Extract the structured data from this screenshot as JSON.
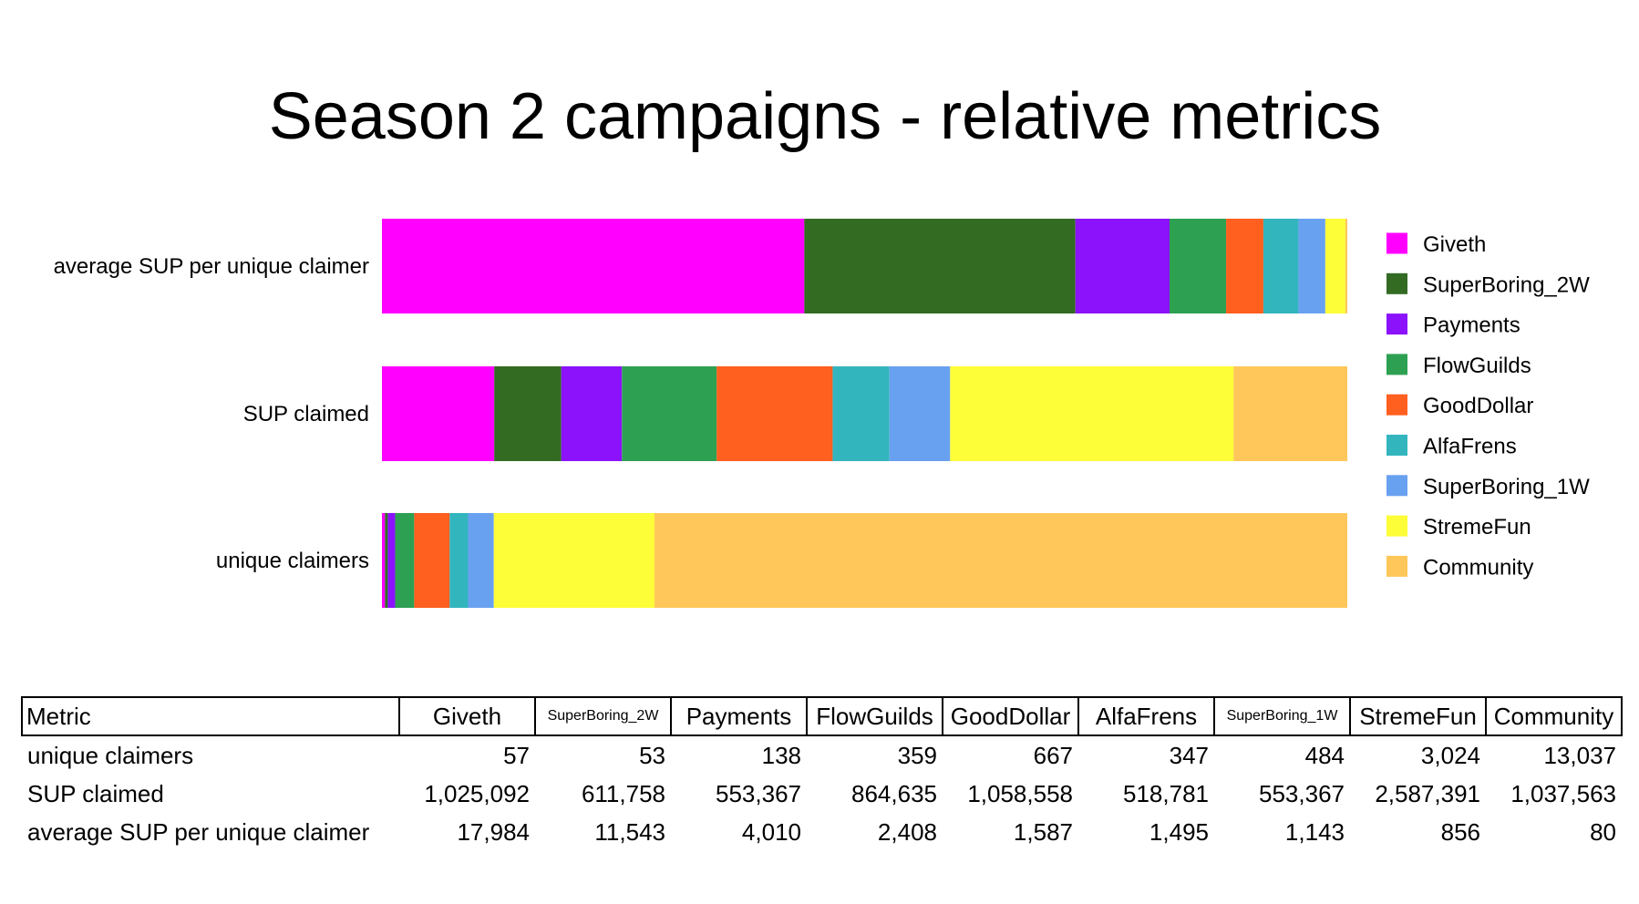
{
  "chart_data": {
    "type": "bar",
    "orientation": "horizontal",
    "stacked": "normalized",
    "title": "Season 2 campaigns - relative metrics",
    "categories": [
      "average SUP per unique claimer",
      "SUP claimed",
      "unique claimers"
    ],
    "series": [
      {
        "name": "Giveth",
        "color": "#ff00ff",
        "values": [
          17984,
          1025092,
          57
        ]
      },
      {
        "name": "SuperBoring_2W",
        "color": "#336b23",
        "values": [
          11543,
          611758,
          53
        ]
      },
      {
        "name": "Payments",
        "color": "#8b12fb",
        "values": [
          4010,
          553367,
          138
        ]
      },
      {
        "name": "FlowGuilds",
        "color": "#2ea052",
        "values": [
          2408,
          864635,
          359
        ]
      },
      {
        "name": "GoodDollar",
        "color": "#ff5f1f",
        "values": [
          1587,
          1058558,
          667
        ]
      },
      {
        "name": "AlfaFrens",
        "color": "#33b5be",
        "values": [
          1495,
          518781,
          347
        ]
      },
      {
        "name": "SuperBoring_1W",
        "color": "#69a1f1",
        "values": [
          1143,
          553367,
          484
        ]
      },
      {
        "name": "StremeFun",
        "color": "#fdfd38",
        "values": [
          856,
          2587391,
          3024
        ]
      },
      {
        "name": "Community",
        "color": "#ffc75a",
        "values": [
          80,
          1037563,
          13037
        ]
      }
    ],
    "legend_position": "right",
    "grid": false
  },
  "table": {
    "header_label": "Metric",
    "columns": [
      "Giveth",
      "SuperBoring_2W",
      "Payments",
      "FlowGuilds",
      "GoodDollar",
      "AlfaFrens",
      "SuperBoring_1W",
      "StremeFun",
      "Community"
    ],
    "rows": [
      {
        "label": "unique claimers",
        "cells": [
          "57",
          "53",
          "138",
          "359",
          "667",
          "347",
          "484",
          "3,024",
          "13,037"
        ]
      },
      {
        "label": "SUP claimed",
        "cells": [
          "1,025,092",
          "611,758",
          "553,367",
          "864,635",
          "1,058,558",
          "518,781",
          "553,367",
          "2,587,391",
          "1,037,563"
        ]
      },
      {
        "label": "average SUP per unique claimer",
        "cells": [
          "17,984",
          "11,543",
          "4,010",
          "2,408",
          "1,587",
          "1,495",
          "1,143",
          "856",
          "80"
        ]
      }
    ]
  }
}
